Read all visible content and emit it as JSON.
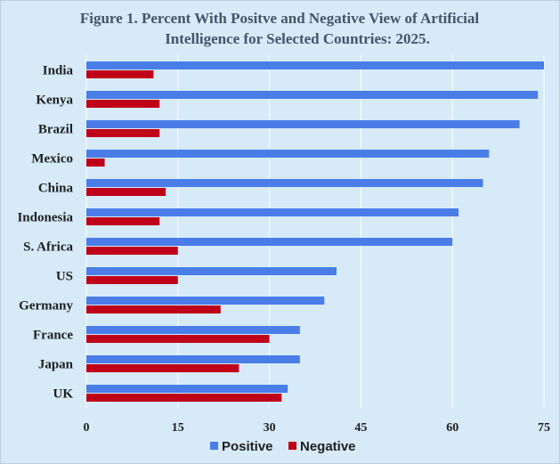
{
  "chart_data": {
    "type": "bar",
    "orientation": "horizontal",
    "title_lines": [
      "Figure 1. Percent With Positve and Negative View of Artificial",
      "Intelligence for Selected Countries: 2025."
    ],
    "categories": [
      "India",
      "Kenya",
      "Brazil",
      "Mexico",
      "China",
      "Indonesia",
      "S. Africa",
      "US",
      "Germany",
      "France",
      "Japan",
      "UK"
    ],
    "series": [
      {
        "name": "Positive",
        "color": "#4a7de8",
        "values": [
          75,
          74,
          71,
          66,
          65,
          61,
          60,
          41,
          39,
          35,
          35,
          33
        ]
      },
      {
        "name": "Negative",
        "color": "#c00018",
        "values": [
          11,
          12,
          12,
          3,
          13,
          12,
          15,
          15,
          22,
          30,
          25,
          32
        ]
      }
    ],
    "xlim": [
      0,
      75
    ],
    "xticks": [
      "0",
      "15",
      "30",
      "45",
      "60",
      "75"
    ],
    "grid": true,
    "legend_position": "bottom",
    "background_color": "#d6eaf8"
  }
}
